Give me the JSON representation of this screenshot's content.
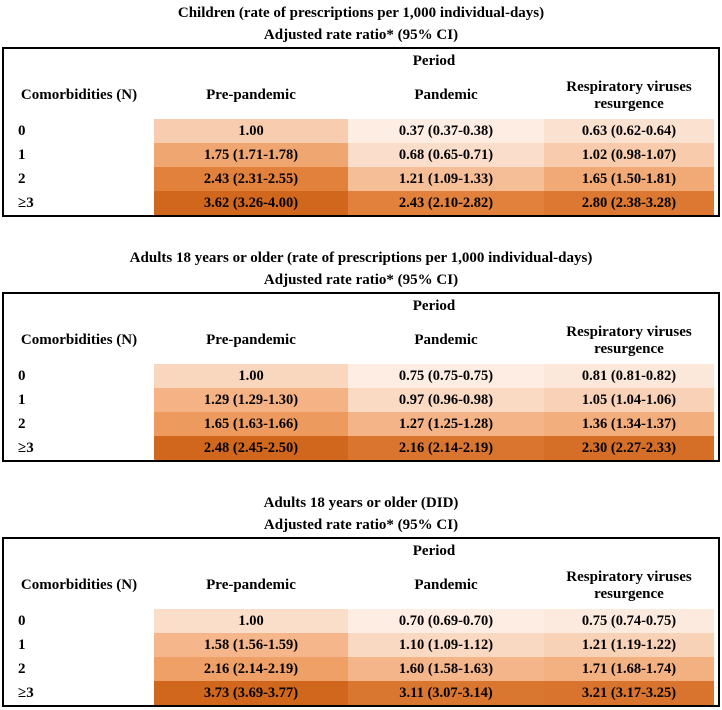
{
  "page": {
    "background": "#FFFFFF",
    "text_color": "#000000"
  },
  "heatmap_ramp": [
    [
      0.0,
      "#FDEDE2"
    ],
    [
      0.15,
      "#F9D6BE"
    ],
    [
      0.31,
      "#F4B285"
    ],
    [
      0.5,
      "#EE9E63"
    ],
    [
      0.65,
      "#E07D37"
    ],
    [
      0.85,
      "#D7732D"
    ],
    [
      1.0,
      "#D0671C"
    ]
  ],
  "chart_data": [
    {
      "type": "heatmap",
      "title": "Children (rate of prescriptions per 1,000 individual-days)",
      "subtitle": "Adjusted rate ratio* (95% CI)",
      "col_group_header": "Period",
      "row_header": "Comorbidities (N)",
      "columns": [
        "Pre-pandemic",
        "Pandemic",
        "Respiratory viruses resurgence"
      ],
      "row_labels": [
        "0",
        "1",
        "2",
        "≥3"
      ],
      "cell_text": [
        [
          "1.00",
          "0.37 (0.37-0.38)",
          "0.63 (0.62-0.64)"
        ],
        [
          "1.75 (1.71-1.78)",
          "0.68 (0.65-0.71)",
          "1.02 (0.98-1.07)"
        ],
        [
          "2.43 (2.31-2.55)",
          "1.21 (1.09-1.33)",
          "1.65 (1.50-1.81)"
        ],
        [
          "3.62 (3.26-4.00)",
          "2.43 (2.10-2.82)",
          "2.80 (2.38-3.28)"
        ]
      ],
      "values": [
        [
          1.0,
          0.37,
          0.63
        ],
        [
          1.75,
          0.68,
          1.02
        ],
        [
          2.43,
          1.21,
          1.65
        ],
        [
          3.62,
          2.43,
          2.8
        ]
      ],
      "color_scale_note": "per-table min-max, light peach (min) to dark orange (max)"
    },
    {
      "type": "heatmap",
      "title": "Adults 18 years or older (rate of prescriptions per 1,000 individual-days)",
      "subtitle": "Adjusted rate ratio* (95% CI)",
      "col_group_header": "Period",
      "row_header": "Comorbidities (N)",
      "columns": [
        "Pre-pandemic",
        "Pandemic",
        "Respiratory viruses resurgence"
      ],
      "row_labels": [
        "0",
        "1",
        "2",
        "≥3"
      ],
      "cell_text": [
        [
          "1.00",
          "0.75 (0.75-0.75)",
          "0.81 (0.81-0.82)"
        ],
        [
          "1.29 (1.29-1.30)",
          "0.97 (0.96-0.98)",
          "1.05 (1.04-1.06)"
        ],
        [
          "1.65 (1.63-1.66)",
          "1.27 (1.25-1.28)",
          "1.36 (1.34-1.37)"
        ],
        [
          "2.48 (2.45-2.50)",
          "2.16 (2.14-2.19)",
          "2.30 (2.27-2.33)"
        ]
      ],
      "values": [
        [
          1.0,
          0.75,
          0.81
        ],
        [
          1.29,
          0.97,
          1.05
        ],
        [
          1.65,
          1.27,
          1.36
        ],
        [
          2.48,
          2.16,
          2.3
        ]
      ],
      "color_scale_note": "per-table min-max, light peach (min) to dark orange (max)"
    },
    {
      "type": "heatmap",
      "title": "Adults 18 years or older (DID)",
      "subtitle": "Adjusted rate ratio* (95% CI)",
      "col_group_header": "Period",
      "row_header": "Comorbidities (N)",
      "columns": [
        "Pre-pandemic",
        "Pandemic",
        "Respiratory viruses resurgence"
      ],
      "row_labels": [
        "0",
        "1",
        "2",
        "≥3"
      ],
      "cell_text": [
        [
          "1.00",
          "0.70 (0.69-0.70)",
          "0.75 (0.74-0.75)"
        ],
        [
          "1.58 (1.56-1.59)",
          "1.10 (1.09-1.12)",
          "1.21 (1.19-1.22)"
        ],
        [
          "2.16 (2.14-2.19)",
          "1.60 (1.58-1.63)",
          "1.71 (1.68-1.74)"
        ],
        [
          "3.73 (3.69-3.77)",
          "3.11 (3.07-3.14)",
          "3.21 (3.17-3.25)"
        ]
      ],
      "values": [
        [
          1.0,
          0.7,
          0.75
        ],
        [
          1.58,
          1.1,
          1.21
        ],
        [
          2.16,
          1.6,
          1.71
        ],
        [
          3.73,
          3.11,
          3.21
        ]
      ],
      "color_scale_note": "per-table min-max, light peach (min) to dark orange (max)"
    }
  ]
}
